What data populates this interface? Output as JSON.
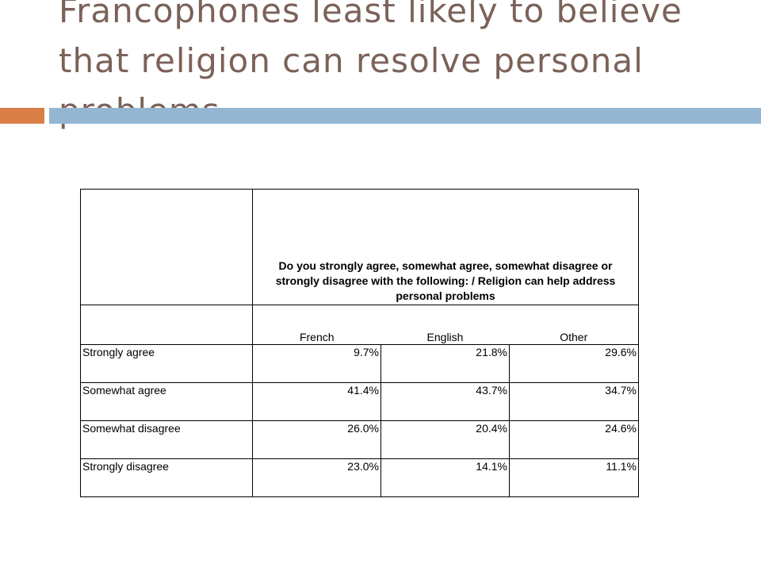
{
  "slide": {
    "title": "Francophones least likely to believe that religion can resolve personal problems",
    "colors": {
      "title": "#7b6259",
      "accent_bar": "#d97f46",
      "main_bar": "#94b6d2"
    }
  },
  "chart_data": {
    "type": "table",
    "title": "Francophones least likely to believe that religion can resolve personal problems",
    "question": "Do you strongly agree, somewhat agree, somewhat disagree or strongly disagree with the following: / Religion can help address personal problems",
    "columns": [
      "French",
      "English",
      "Other"
    ],
    "rows": [
      {
        "label": "Strongly agree",
        "values": [
          "9.7%",
          "21.8%",
          "29.6%"
        ]
      },
      {
        "label": "Somewhat agree",
        "values": [
          "41.4%",
          "43.7%",
          "34.7%"
        ]
      },
      {
        "label": "Somewhat disagree",
        "values": [
          "26.0%",
          "20.4%",
          "24.6%"
        ]
      },
      {
        "label": "Strongly disagree",
        "values": [
          "23.0%",
          "14.1%",
          "11.1%"
        ]
      }
    ]
  }
}
